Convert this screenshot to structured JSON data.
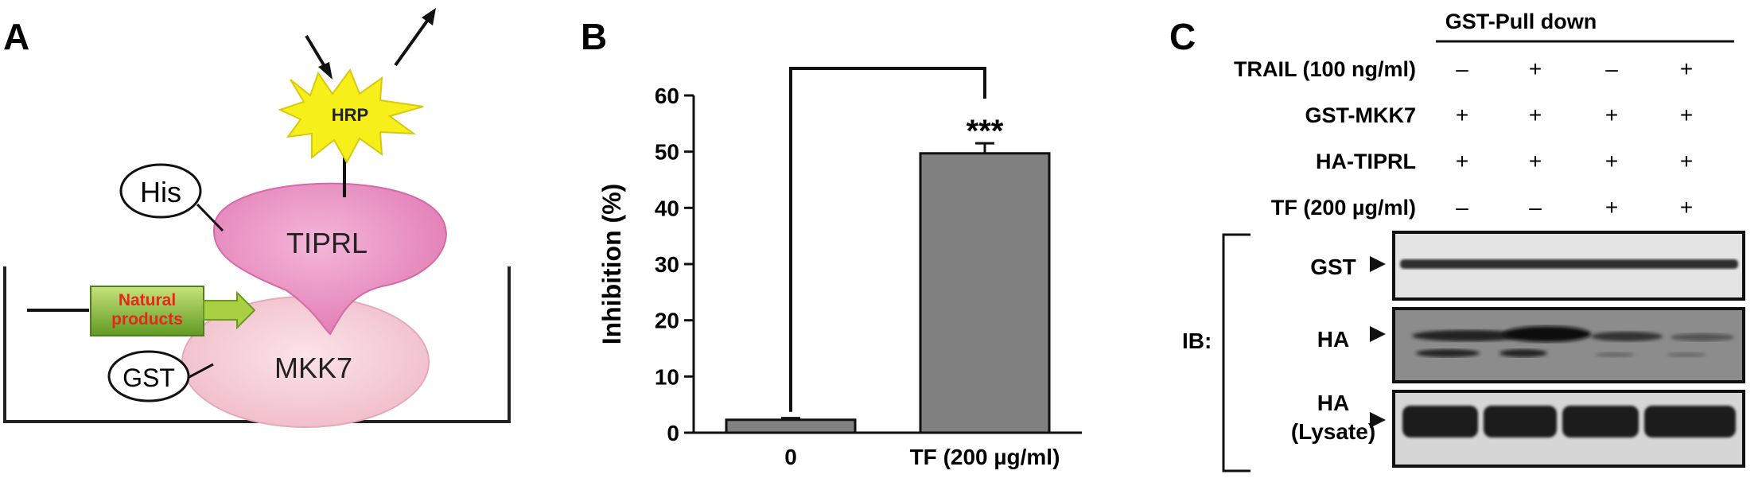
{
  "panels": {
    "a": {
      "letter": "A",
      "labels": {
        "his": "His",
        "tiprl": "TIPRL",
        "hrp": "HRP",
        "gst": "GST",
        "mkk7": "MKK7",
        "natural_line1": "Natural",
        "natural_line2": "products"
      },
      "colors": {
        "tiprl": "#e07ab4",
        "mkk7": "#f3c6cf",
        "hrp": "#f6ef1a",
        "box": "#8fbf3a",
        "box_text": "#e8261c"
      }
    },
    "b": {
      "letter": "B",
      "significance": "***"
    },
    "c": {
      "letter": "C",
      "header": "GST-Pull down",
      "conditions": [
        {
          "label": "TRAIL (100 ng/ml)",
          "values": [
            "–",
            "+",
            "–",
            "+"
          ]
        },
        {
          "label": "GST-MKK7",
          "values": [
            "+",
            "+",
            "+",
            "+"
          ]
        },
        {
          "label": "HA-TIPRL",
          "values": [
            "+",
            "+",
            "+",
            "+"
          ]
        },
        {
          "label": "TF (200 µg/ml)",
          "values": [
            "–",
            "–",
            "+",
            "+"
          ]
        }
      ],
      "ib_label": "IB:",
      "blots": [
        {
          "label_line1": "GST",
          "label_line2": ""
        },
        {
          "label_line1": "HA",
          "label_line2": ""
        },
        {
          "label_line1": "HA",
          "label_line2": "(Lysate)"
        }
      ]
    }
  },
  "chart_data": {
    "type": "bar",
    "categories": [
      "0",
      "TF (200 µg/ml)"
    ],
    "values": [
      2.3,
      49.7
    ],
    "errors": [
      0.3,
      1.8
    ],
    "ylabel": "Inhibition (%)",
    "ylim": [
      0,
      60
    ],
    "yticks": [
      0,
      10,
      20,
      30,
      40,
      50,
      60
    ],
    "bar_color": "#808080",
    "significance_bracket": [
      "0",
      "TF (200 µg/ml)"
    ]
  }
}
